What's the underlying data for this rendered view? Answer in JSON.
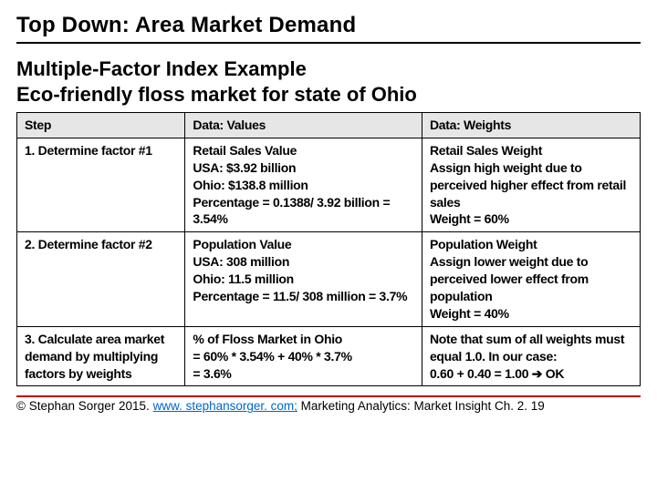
{
  "title": "Top Down: Area Market Demand",
  "subtitle_line1": "Multiple-Factor Index Example",
  "subtitle_line2": "Eco-friendly floss market for state of Ohio",
  "table": {
    "headers": {
      "step": "Step",
      "values": "Data: Values",
      "weights": "Data: Weights"
    },
    "rows": [
      {
        "step": "1. Determine factor #1",
        "values": "Retail Sales Value\nUSA: $3.92 billion\nOhio: $138.8 million\nPercentage = 0.1388/ 3.92 billion = 3.54%",
        "weights": "Retail Sales Weight\nAssign high weight due to perceived higher effect from retail sales\nWeight = 60%"
      },
      {
        "step": "2. Determine factor #2",
        "values": "Population Value\nUSA: 308 million\nOhio: 11.5 million\nPercentage = 11.5/ 308 million = 3.7%",
        "weights": "Population Weight\nAssign lower weight due to perceived lower effect from population\nWeight = 40%"
      },
      {
        "step": "3. Calculate area market demand by multiplying factors by weights",
        "values": "% of Floss Market in Ohio\n= 60% * 3.54% + 40% * 3.7%\n= 3.6%",
        "weights": "Note that sum of all weights must equal 1.0. In our case:\n0.60 + 0.40 = 1.00 ➔ OK"
      }
    ]
  },
  "footer": {
    "prefix": "© Stephan Sorger 2015. ",
    "link_text": "www. stephansorger. com;",
    "suffix": " Marketing Analytics: Market Insight Ch. 2. 19"
  },
  "colors": {
    "header_bg": "#e6e6e6",
    "border": "#000000",
    "rule": "#c00000",
    "link": "#0066cc",
    "text": "#000000",
    "background": "#ffffff"
  }
}
